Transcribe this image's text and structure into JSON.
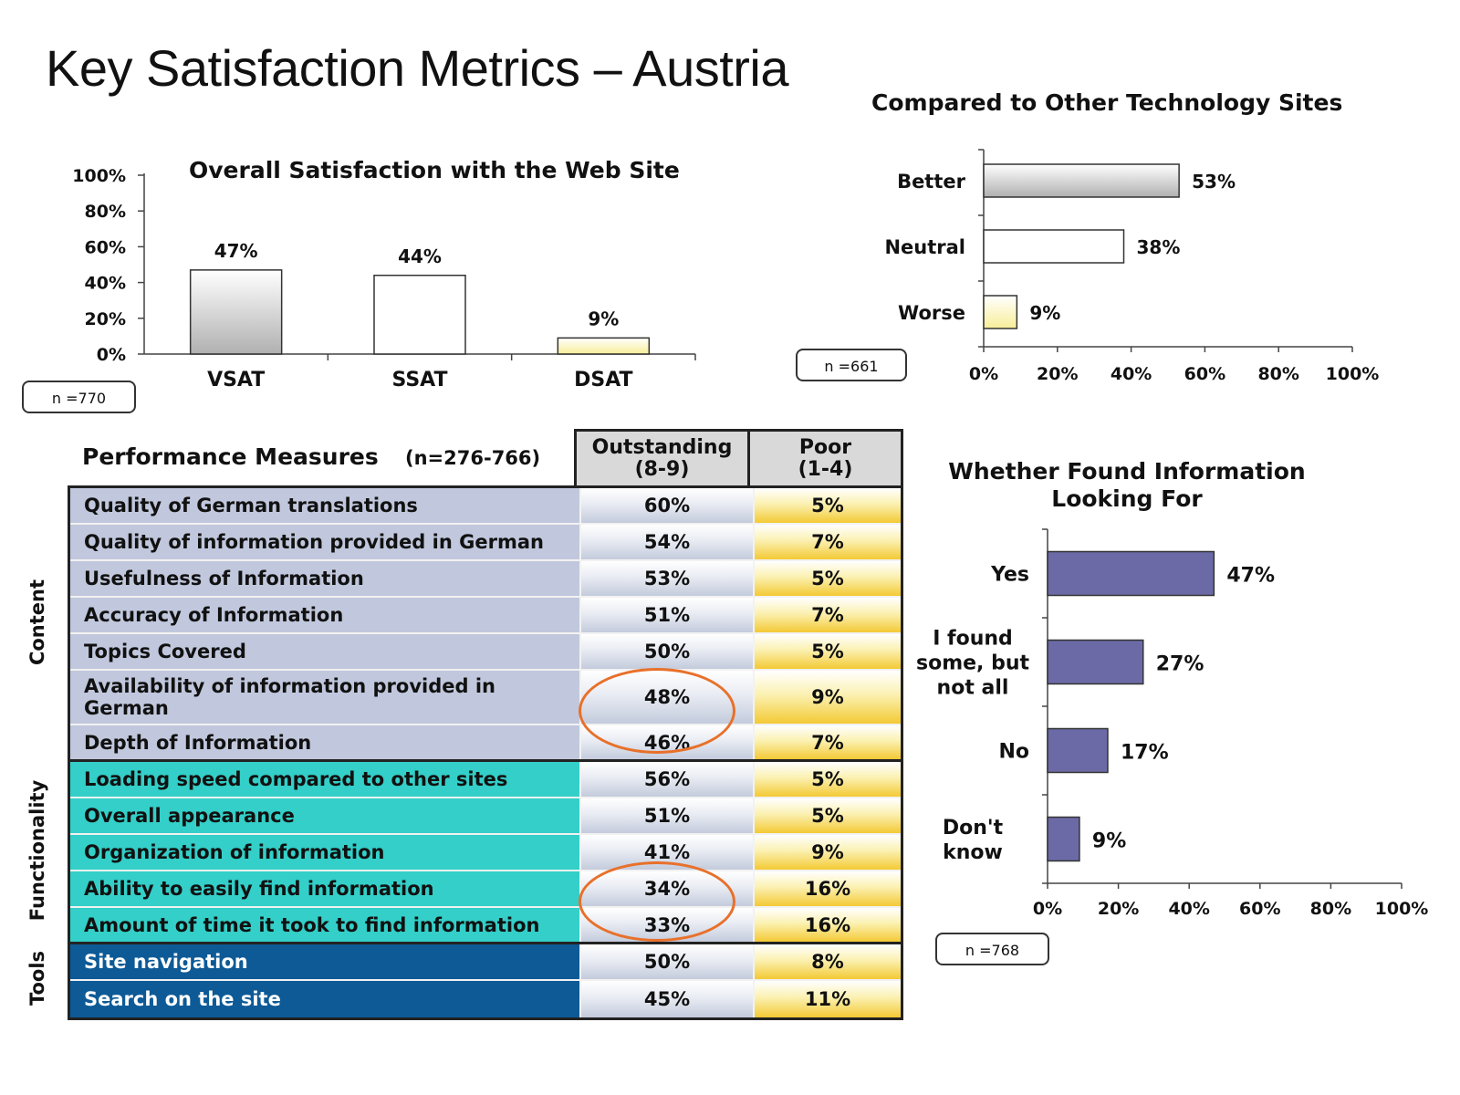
{
  "page": {
    "title": "Key Satisfaction Metrics – Austria"
  },
  "chart_data": [
    {
      "id": "overall",
      "type": "bar",
      "title": "Overall Satisfaction with the Web Site",
      "categories": [
        "VSAT",
        "SSAT",
        "DSAT"
      ],
      "values": [
        47,
        44,
        9
      ],
      "value_labels": [
        "47%",
        "44%",
        "9%"
      ],
      "yticks": [
        "0%",
        "20%",
        "40%",
        "60%",
        "80%",
        "100%"
      ],
      "ylim": [
        0,
        100
      ],
      "colors": [
        "#bdbdbd",
        "#ffffff",
        "#fbf6b8"
      ],
      "n_label": "n =770",
      "xlabel": "",
      "ylabel": ""
    },
    {
      "id": "compared",
      "type": "bar",
      "orientation": "horizontal",
      "title": "Compared to Other Technology Sites",
      "categories": [
        "Better",
        "Neutral",
        "Worse"
      ],
      "values": [
        53,
        38,
        9
      ],
      "value_labels": [
        "53%",
        "38%",
        "9%"
      ],
      "xticks": [
        "0%",
        "20%",
        "40%",
        "60%",
        "80%",
        "100%"
      ],
      "xlim": [
        0,
        100
      ],
      "colors": [
        "#bdbdbd",
        "#ffffff",
        "#fbf6b8"
      ],
      "n_label": "n =661",
      "xlabel": "",
      "ylabel": ""
    },
    {
      "id": "found",
      "type": "bar",
      "orientation": "horizontal",
      "title": "Whether Found Information\nLooking For",
      "categories": [
        "Yes",
        "I found\nsome, but\nnot all",
        "No",
        "Don't\nknow"
      ],
      "values": [
        47,
        27,
        17,
        9
      ],
      "value_labels": [
        "47%",
        "27%",
        "17%",
        "9%"
      ],
      "xticks": [
        "0%",
        "20%",
        "40%",
        "60%",
        "80%",
        "100%"
      ],
      "xlim": [
        0,
        100
      ],
      "color": "#6b6aa6",
      "n_label": "n =768",
      "xlabel": "",
      "ylabel": ""
    },
    {
      "id": "performance",
      "type": "table",
      "title": "Performance Measures",
      "n_label": "(n=276-766)",
      "columns": [
        "Outstanding\n(8-9)",
        "Poor\n(1-4)"
      ],
      "groups": [
        {
          "name": "Content",
          "rows": [
            {
              "label": "Quality of German translations",
              "outstanding": "60%",
              "poor": "5%"
            },
            {
              "label": "Quality of information provided in German",
              "outstanding": "54%",
              "poor": "7%"
            },
            {
              "label": "Usefulness of Information",
              "outstanding": "53%",
              "poor": "5%"
            },
            {
              "label": "Accuracy of Information",
              "outstanding": "51%",
              "poor": "7%"
            },
            {
              "label": "Topics Covered",
              "outstanding": "50%",
              "poor": "5%"
            },
            {
              "label": "Availability of information provided in German",
              "outstanding": "48%",
              "poor": "9%",
              "tall": true
            },
            {
              "label": "Depth of Information",
              "outstanding": "46%",
              "poor": "7%"
            }
          ]
        },
        {
          "name": "Functionality",
          "rows": [
            {
              "label": "Loading speed compared to other sites",
              "outstanding": "56%",
              "poor": "5%"
            },
            {
              "label": "Overall appearance",
              "outstanding": "51%",
              "poor": "5%"
            },
            {
              "label": "Organization of information",
              "outstanding": "41%",
              "poor": "9%"
            },
            {
              "label": "Ability to easily find information",
              "outstanding": "34%",
              "poor": "16%"
            },
            {
              "label": "Amount of time it took to find information",
              "outstanding": "33%",
              "poor": "16%"
            }
          ]
        },
        {
          "name": "Tools",
          "rows": [
            {
              "label": "Site navigation",
              "outstanding": "50%",
              "poor": "8%"
            },
            {
              "label": "Search on the site",
              "outstanding": "45%",
              "poor": "11%"
            }
          ]
        }
      ],
      "highlight_color": "#e8702a"
    }
  ]
}
